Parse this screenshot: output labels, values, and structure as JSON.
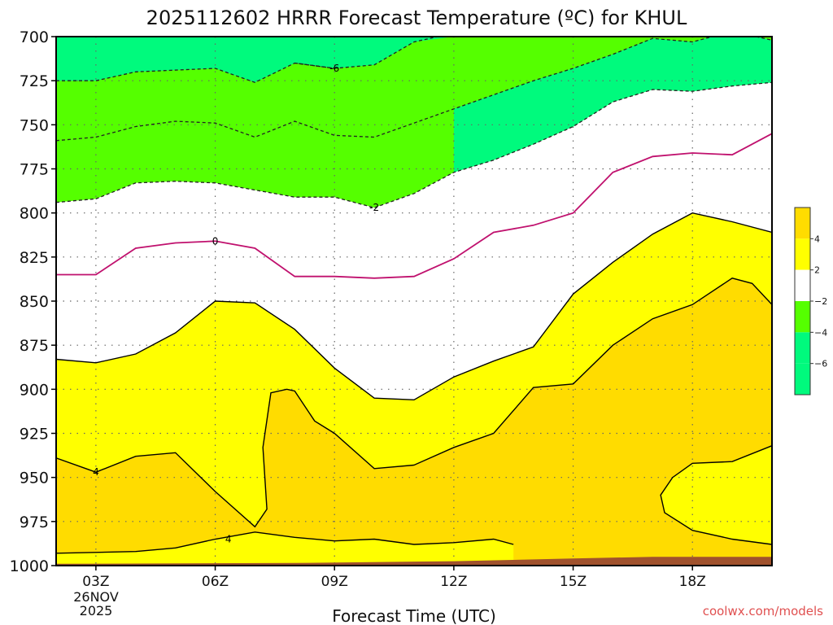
{
  "chart_data": {
    "type": "heatmap",
    "title": "2025112602 HRRR Forecast Temperature (ºC) for KHUL",
    "xlabel": "Forecast Time (UTC)",
    "ylabel": "",
    "credit": "coolwx.com/models",
    "x_range_hours": [
      2,
      20
    ],
    "y_range_hPa": [
      700,
      1000
    ],
    "y_ticks": [
      "700",
      "725",
      "750",
      "775",
      "800",
      "825",
      "850",
      "875",
      "900",
      "925",
      "950",
      "975",
      "1000"
    ],
    "x_ticks": [
      {
        "hour": 3,
        "label": "03Z"
      },
      {
        "hour": 6,
        "label": "06Z"
      },
      {
        "hour": 9,
        "label": "09Z"
      },
      {
        "hour": 12,
        "label": "12Z"
      },
      {
        "hour": 15,
        "label": "15Z"
      },
      {
        "hour": 18,
        "label": "18Z"
      }
    ],
    "date_label_line1": "26NOV",
    "date_label_line2": "2025",
    "grid": true,
    "fill_bands": [
      {
        "range": "-8 to -6",
        "color": "#00fa7d"
      },
      {
        "range": "-6 to -2",
        "color": "#55ff00"
      },
      {
        "range": "-2 to 2",
        "color": "#ffffff"
      },
      {
        "range": "2 to 4",
        "color": "#ffff00"
      },
      {
        "range": "4 to 8",
        "color": "#ffdc00"
      }
    ],
    "ground_color": "#a0522d",
    "contour_labels": [
      "-6",
      "-2",
      "0",
      "4",
      "4"
    ],
    "legend": {
      "placement": "right",
      "labels": [
        "4",
        "2",
        "−2",
        "−4",
        "−6"
      ],
      "colors": [
        "#ffdc00",
        "#ffff00",
        "#ffffff",
        "#55ff00",
        "#00fa7d",
        "#00fa7d"
      ]
    },
    "contours": {
      "minus6": [
        [
          2,
          725
        ],
        [
          3,
          725
        ],
        [
          4,
          720
        ],
        [
          6,
          718
        ],
        [
          7,
          726
        ],
        [
          8,
          715
        ],
        [
          9,
          718
        ],
        [
          10,
          716
        ],
        [
          11,
          703
        ],
        [
          12,
          700
        ]
      ],
      "minus6_top": [
        [
          8,
          715
        ],
        [
          9,
          718
        ],
        [
          10,
          716
        ],
        [
          11,
          703
        ],
        [
          12,
          698
        ],
        [
          20,
          698
        ]
      ],
      "minus4": [
        [
          2,
          759
        ],
        [
          3,
          757
        ],
        [
          4,
          751
        ],
        [
          5,
          748
        ],
        [
          6,
          749
        ],
        [
          7,
          757
        ],
        [
          8,
          748
        ],
        [
          9,
          756
        ],
        [
          10,
          757
        ],
        [
          11,
          749
        ],
        [
          12,
          741
        ],
        [
          13,
          733
        ],
        [
          14,
          725
        ],
        [
          15,
          718
        ],
        [
          16,
          710
        ],
        [
          17,
          701
        ],
        [
          18,
          703
        ],
        [
          19,
          697
        ],
        [
          20,
          702
        ]
      ],
      "minus2": [
        [
          2,
          794
        ],
        [
          3,
          792
        ],
        [
          4,
          783
        ],
        [
          5,
          782
        ],
        [
          6,
          783
        ],
        [
          7,
          787
        ],
        [
          8,
          791
        ],
        [
          9,
          791
        ],
        [
          10,
          797
        ],
        [
          11,
          789
        ],
        [
          12,
          777
        ],
        [
          13,
          770
        ],
        [
          14,
          761
        ],
        [
          15,
          751
        ],
        [
          16,
          737
        ],
        [
          17,
          730
        ],
        [
          18,
          731
        ],
        [
          19,
          728
        ],
        [
          20,
          726
        ]
      ],
      "zero": [
        [
          2,
          835
        ],
        [
          3,
          835
        ],
        [
          4,
          820
        ],
        [
          5,
          817
        ],
        [
          6,
          816
        ],
        [
          7,
          820
        ],
        [
          8,
          836
        ],
        [
          9,
          836
        ],
        [
          10,
          837
        ],
        [
          11,
          836
        ],
        [
          12,
          826
        ],
        [
          13,
          811
        ],
        [
          14,
          807
        ],
        [
          15,
          800
        ],
        [
          16,
          777
        ],
        [
          17,
          768
        ],
        [
          18,
          766
        ],
        [
          19,
          767
        ],
        [
          20,
          755
        ]
      ],
      "plus2": [
        [
          2,
          883
        ],
        [
          3,
          885
        ],
        [
          4,
          880
        ],
        [
          5,
          868
        ],
        [
          6,
          850
        ],
        [
          7,
          851
        ],
        [
          8,
          866
        ],
        [
          9,
          888
        ],
        [
          10,
          905
        ],
        [
          11,
          906
        ],
        [
          12,
          893
        ],
        [
          13,
          884
        ],
        [
          14,
          876
        ],
        [
          15,
          846
        ],
        [
          16,
          828
        ],
        [
          17,
          812
        ],
        [
          18,
          800
        ],
        [
          19,
          805
        ],
        [
          20,
          811
        ]
      ],
      "plus4_warm": [
        [
          2,
          939
        ],
        [
          3,
          947
        ],
        [
          4,
          938
        ],
        [
          5,
          936
        ],
        [
          6,
          958
        ],
        [
          7,
          978
        ],
        [
          7.3,
          968
        ],
        [
          7.2,
          933
        ],
        [
          7.4,
          902
        ],
        [
          7.8,
          900
        ],
        [
          8,
          901
        ],
        [
          8.5,
          918
        ],
        [
          9,
          925
        ],
        [
          10,
          945
        ],
        [
          11,
          943
        ],
        [
          12,
          933
        ],
        [
          13,
          925
        ],
        [
          14,
          899
        ],
        [
          15,
          897
        ],
        [
          16,
          875
        ],
        [
          17,
          860
        ],
        [
          18,
          852
        ],
        [
          19,
          837
        ],
        [
          19.5,
          840
        ],
        [
          20,
          852
        ]
      ],
      "plus4_low": [
        [
          2,
          993
        ],
        [
          4,
          992
        ],
        [
          5,
          990
        ],
        [
          6,
          985
        ],
        [
          7,
          981
        ],
        [
          8,
          984
        ],
        [
          9,
          986
        ],
        [
          10,
          985
        ],
        [
          11,
          988
        ],
        [
          12,
          987
        ],
        [
          13,
          985
        ],
        [
          13.5,
          988
        ]
      ]
    }
  }
}
